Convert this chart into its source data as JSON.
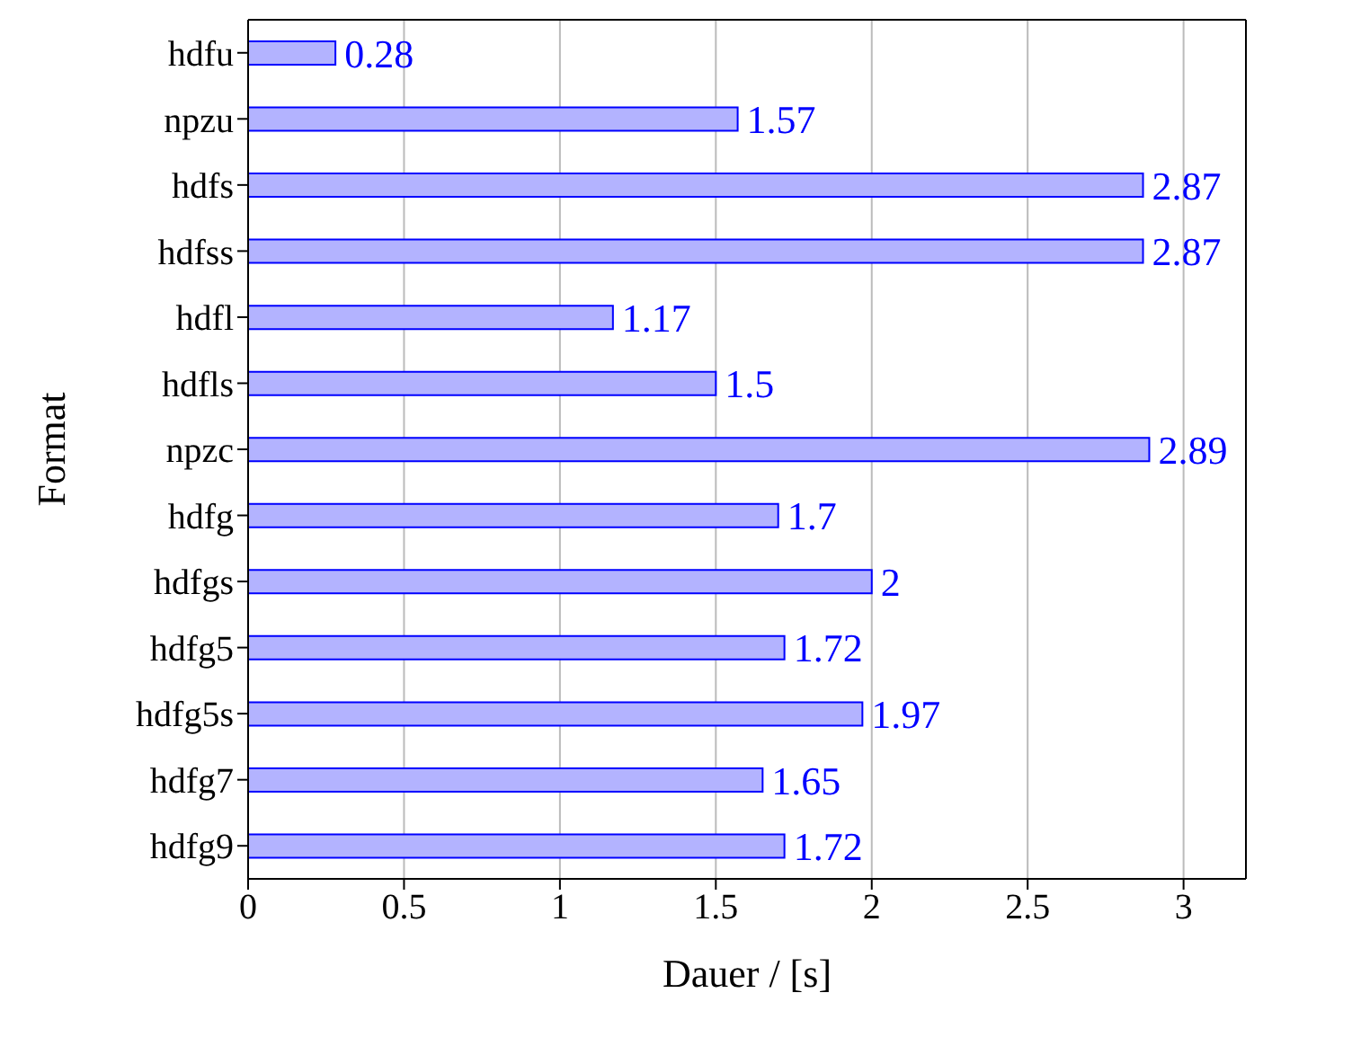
{
  "chart_data": {
    "type": "bar",
    "orientation": "horizontal",
    "xlabel": "Dauer / [s]",
    "ylabel": "Format",
    "categories": [
      "hdfu",
      "npzu",
      "hdfs",
      "hdfss",
      "hdfl",
      "hdfls",
      "npzc",
      "hdfg",
      "hdfgs",
      "hdfg5",
      "hdfg5s",
      "hdfg7",
      "hdfg9"
    ],
    "values": [
      0.28,
      1.57,
      2.87,
      2.87,
      1.17,
      1.5,
      2.89,
      1.7,
      2,
      1.72,
      1.97,
      1.65,
      1.72
    ],
    "color": "#b3b3ff",
    "data_labels": true,
    "xlim": [
      0,
      3.2
    ],
    "xticks": [
      0,
      0.5,
      1,
      1.5,
      2,
      2.5,
      3
    ],
    "grid": "x"
  }
}
